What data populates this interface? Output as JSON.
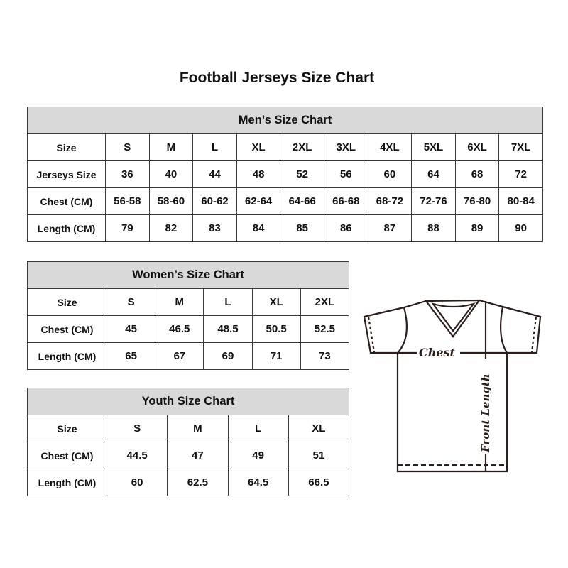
{
  "title": "Football Jerseys Size Chart",
  "tables": {
    "men": {
      "heading": "Men’s Size Chart",
      "rows": [
        [
          "Size",
          "S",
          "M",
          "L",
          "XL",
          "2XL",
          "3XL",
          "4XL",
          "5XL",
          "6XL",
          "7XL"
        ],
        [
          "Jerseys Size",
          "36",
          "40",
          "44",
          "48",
          "52",
          "56",
          "60",
          "64",
          "68",
          "72"
        ],
        [
          "Chest (CM)",
          "56-58",
          "58-60",
          "60-62",
          "62-64",
          "64-66",
          "66-68",
          "68-72",
          "72-76",
          "76-80",
          "80-84"
        ],
        [
          "Length (CM)",
          "79",
          "82",
          "83",
          "84",
          "85",
          "86",
          "87",
          "88",
          "89",
          "90"
        ]
      ]
    },
    "women": {
      "heading": "Women’s Size Chart",
      "rows": [
        [
          "Size",
          "S",
          "M",
          "L",
          "XL",
          "2XL"
        ],
        [
          "Chest (CM)",
          "45",
          "46.5",
          "48.5",
          "50.5",
          "52.5"
        ],
        [
          "Length (CM)",
          "65",
          "67",
          "69",
          "71",
          "73"
        ]
      ]
    },
    "youth": {
      "heading": "Youth Size Chart",
      "rows": [
        [
          "Size",
          "S",
          "M",
          "L",
          "XL"
        ],
        [
          "Chest (CM)",
          "44.5",
          "47",
          "49",
          "51"
        ],
        [
          "Length (CM)",
          "60",
          "62.5",
          "64.5",
          "66.5"
        ]
      ]
    }
  },
  "diagram": {
    "chest_label": "Chest",
    "length_label": "Front Length"
  },
  "colors": {
    "header_bg": "#d9d9d9",
    "border": "#3a3a3a",
    "line": "#2b1f1c"
  }
}
